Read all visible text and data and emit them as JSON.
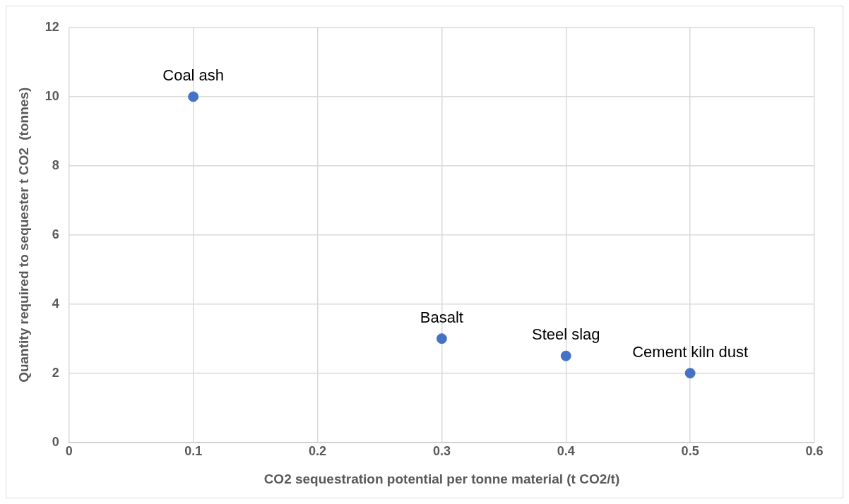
{
  "chart_data": {
    "type": "scatter",
    "xlabel": "CO2 sequestration potential per tonne material (t CO2/t)",
    "ylabel": "Quantity required to sequester t CO2  (tonnes)",
    "x": [
      0.1,
      0.3,
      0.4,
      0.5
    ],
    "series": [
      {
        "color": "#4472c4",
        "values": [
          10,
          3,
          2.5,
          2
        ]
      }
    ],
    "xlim": [
      0,
      0.6
    ],
    "xticks": [
      0,
      0.1,
      0.2,
      0.3,
      0.4,
      0.5,
      0.6
    ],
    "ylim": [
      0,
      12
    ],
    "yticks": [
      0,
      2,
      4,
      6,
      8,
      10,
      12
    ],
    "grid": true,
    "marker": "circle",
    "legend": false,
    "annotations": [
      {
        "text": "Coal ash",
        "x": 0.1,
        "y": 10
      },
      {
        "text": "Basalt",
        "x": 0.3,
        "y": 3
      },
      {
        "text": "Steel slag",
        "x": 0.4,
        "y": 2.5
      },
      {
        "text": "Cement kiln dust",
        "x": 0.5,
        "y": 2
      }
    ]
  }
}
